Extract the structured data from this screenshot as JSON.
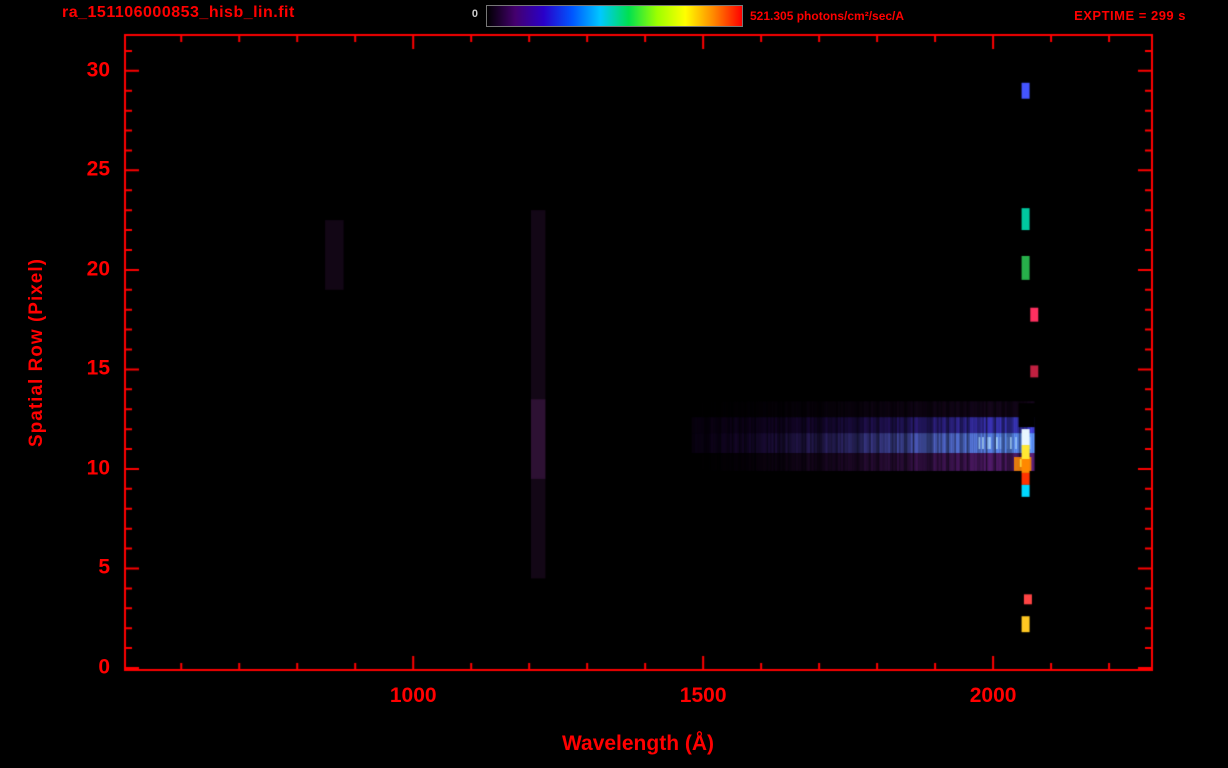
{
  "window": {
    "background": "#000000",
    "accent_red": "#ff0000"
  },
  "header": {
    "title": "ra_151106000853_hisb_lin.fit",
    "exptime_label": "EXPTIME = 299 s",
    "colorbar": {
      "min_label": "0",
      "max_label": "521.305 photons/cm²/sec/A"
    }
  },
  "chart_data": {
    "type": "heatmap",
    "title": "ra_151106000853_hisb_lin.fit",
    "xlabel": "Wavelength (Å)",
    "ylabel": "Spatial Row (Pixel)",
    "xlim": [
      503,
      2274
    ],
    "ylim": [
      -0.1,
      31.8
    ],
    "x_ticks": [
      1000,
      1500,
      2000
    ],
    "x_minor_tick_interval": 100,
    "y_ticks": [
      0,
      5,
      10,
      15,
      20,
      25,
      30
    ],
    "y_minor_tick_interval": 1,
    "grid": false,
    "background": "#000000",
    "frame_color": "#ff0000",
    "colorbar": {
      "min": 0,
      "max": 521.305,
      "units": "photons/cm²/sec/A",
      "colormap": "rainbow",
      "stops": [
        "#000000",
        "#44006e",
        "#2a00c8",
        "#0055ff",
        "#00c8ff",
        "#00e050",
        "#9cff00",
        "#ffff00",
        "#ff8800",
        "#ff0000"
      ]
    },
    "exptime_seconds": 299,
    "features": {
      "spectral_trace": {
        "row_center": 11.2,
        "rows": [
          9.9,
          13.4
        ],
        "wavelength_range": [
          1480,
          2070
        ],
        "peak_wavelength_range": [
          1850,
          2065
        ],
        "peak_color": "#5f96ff"
      },
      "emission_line_column": {
        "wavelength": 2056,
        "segments": [
          {
            "rows": [
              28.6,
              29.4
            ],
            "color": "#4455ff",
            "wavelength": 2056
          },
          {
            "rows": [
              22.0,
              23.1
            ],
            "color": "#00c8a0",
            "wavelength": 2056
          },
          {
            "rows": [
              19.5,
              20.7
            ],
            "color": "#27b04a",
            "wavelength": 2056
          },
          {
            "rows": [
              17.4,
              18.1
            ],
            "color": "#ff3060",
            "wavelength": 2071
          },
          {
            "rows": [
              14.6,
              15.2
            ],
            "color": "#c02040",
            "wavelength": 2071
          },
          {
            "rows": [
              11.2,
              12.0
            ],
            "color": "#e8f6ff",
            "wavelength": 2056
          },
          {
            "rows": [
              10.5,
              11.2
            ],
            "color": "#ffe833",
            "wavelength": 2056
          },
          {
            "rows": [
              9.8,
              10.5
            ],
            "color": "#ff8800",
            "wavelength": 2056
          },
          {
            "rows": [
              9.2,
              9.8
            ],
            "color": "#ff3300",
            "wavelength": 2056
          },
          {
            "rows": [
              8.6,
              9.2
            ],
            "color": "#00d8ff",
            "wavelength": 2056
          },
          {
            "rows": [
              3.2,
              3.7
            ],
            "color": "#ff4444",
            "wavelength": 2060
          },
          {
            "rows": [
              1.8,
              2.6
            ],
            "color": "#ffc822",
            "wavelength": 2056
          }
        ]
      },
      "faint_columns": [
        {
          "wavelength_range": [
            1203,
            1228
          ],
          "rows": [
            4.5,
            23.0
          ],
          "color": "rgba(70,25,80,0.28)"
        },
        {
          "wavelength_range": [
            1203,
            1228
          ],
          "rows": [
            9.5,
            13.5
          ],
          "color": "rgba(95,38,105,0.35)"
        }
      ],
      "faint_blob": {
        "wavelength_range": [
          848,
          880
        ],
        "rows": [
          19.0,
          22.5
        ],
        "color": "rgba(58,20,68,0.30)"
      },
      "gap": {
        "wavelength_range": [
          2044,
          2072
        ],
        "rows": [
          12.1,
          13.3
        ]
      }
    }
  }
}
